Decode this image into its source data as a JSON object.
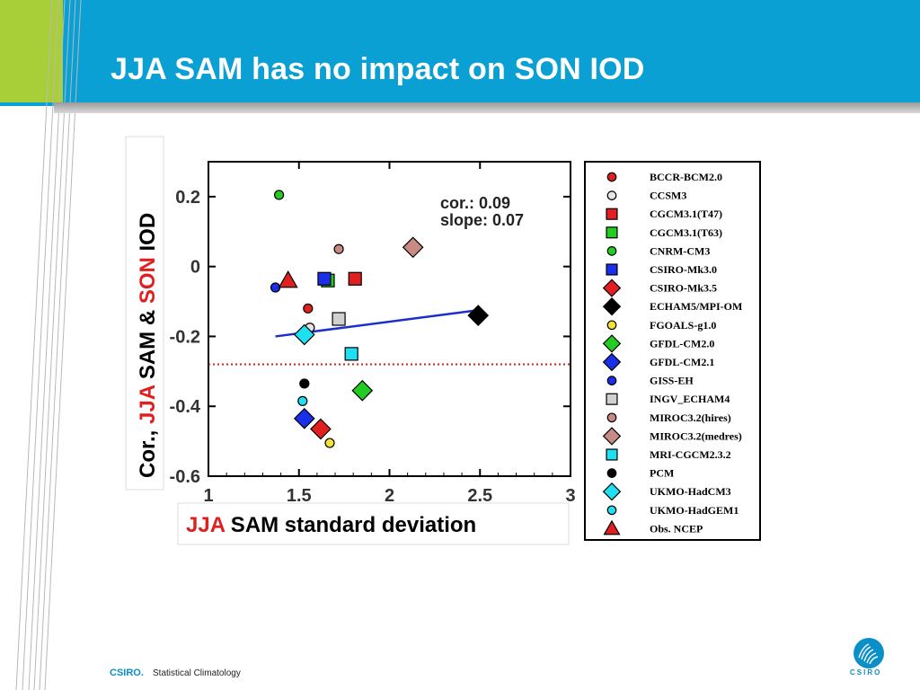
{
  "slide": {
    "title": "JJA SAM has no impact on SON IOD",
    "footer_brand": "CSIRO.",
    "footer_text": "Statistical Climatology",
    "logo_text": "CSIRO",
    "colors": {
      "header": "#0aa0d4",
      "accent_green": "#a9cf38",
      "brand_blue": "#0a8fc8"
    }
  },
  "chart_data": {
    "type": "scatter",
    "title": "",
    "xlabel_parts": [
      "JJA",
      " SAM standard deviation"
    ],
    "ylabel_parts": [
      "Cor., ",
      "JJA",
      " SAM & ",
      "SON",
      " IOD"
    ],
    "xlim": [
      1,
      3
    ],
    "ylim": [
      -0.6,
      0.3
    ],
    "x_ticks": [
      1,
      1.5,
      2,
      2.5,
      3
    ],
    "x_tick_labels": [
      "1",
      "1.5",
      "2",
      "2.5",
      "3"
    ],
    "y_ticks": [
      0.2,
      0,
      -0.2,
      -0.4,
      -0.6
    ],
    "y_tick_labels": [
      "0.2",
      "0",
      "-0.2",
      "-0.4",
      "-0.6"
    ],
    "annotations": {
      "cor": "cor.: 0.09",
      "slope": "slope: 0.07"
    },
    "regression_line": {
      "x": [
        1.37,
        2.49
      ],
      "y": [
        -0.2,
        -0.125
      ],
      "color": "#1a2fcc"
    },
    "reference_line": {
      "y": -0.28,
      "style": "dotted",
      "color": "#cc2222"
    },
    "legend_position": "right",
    "series": [
      {
        "name": "BCCR-BCM2.0",
        "marker": "circle-small",
        "color": "#e02020",
        "x": 1.55,
        "y": -0.12
      },
      {
        "name": "CCSM3",
        "marker": "circle-small",
        "color": "#e6e6e6",
        "x": 1.56,
        "y": -0.175
      },
      {
        "name": "CGCM3.1(T47)",
        "marker": "square",
        "color": "#e02020",
        "x": 1.81,
        "y": -0.035
      },
      {
        "name": "CGCM3.1(T63)",
        "marker": "square",
        "color": "#22cc22",
        "x": 1.66,
        "y": -0.04
      },
      {
        "name": "CNRM-CM3",
        "marker": "circle-small",
        "color": "#22cc22",
        "x": 1.39,
        "y": 0.205
      },
      {
        "name": "CSIRO-Mk3.0",
        "marker": "square",
        "color": "#1a2fe8",
        "x": 1.64,
        "y": -0.035
      },
      {
        "name": "CSIRO-Mk3.5",
        "marker": "diamond",
        "color": "#e02020",
        "x": 1.62,
        "y": -0.465
      },
      {
        "name": "ECHAM5/MPI-OM",
        "marker": "diamond",
        "color": "#000000",
        "x": 2.49,
        "y": -0.14
      },
      {
        "name": "FGOALS-g1.0",
        "marker": "circle-small",
        "color": "#f5e130",
        "x": 1.67,
        "y": -0.505
      },
      {
        "name": "GFDL-CM2.0",
        "marker": "diamond",
        "color": "#22cc22",
        "x": 1.85,
        "y": -0.355
      },
      {
        "name": "GFDL-CM2.1",
        "marker": "diamond",
        "color": "#1a2fe8",
        "x": 1.53,
        "y": -0.435
      },
      {
        "name": "GISS-EH",
        "marker": "circle-small",
        "color": "#1a2fe8",
        "x": 1.37,
        "y": -0.06
      },
      {
        "name": "INGV_ECHAM4",
        "marker": "square",
        "color": "#d0d0d0",
        "x": 1.72,
        "y": -0.15
      },
      {
        "name": "MIROC3.2(hires)",
        "marker": "circle-small",
        "color": "#c88a84",
        "x": 1.72,
        "y": 0.05
      },
      {
        "name": "MIROC3.2(medres)",
        "marker": "diamond",
        "color": "#c88a84",
        "x": 2.13,
        "y": 0.055
      },
      {
        "name": "MRI-CGCM2.3.2",
        "marker": "square",
        "color": "#1ee0f0",
        "x": 1.79,
        "y": -0.25
      },
      {
        "name": "PCM",
        "marker": "circle-small",
        "color": "#000000",
        "x": 1.53,
        "y": -0.335
      },
      {
        "name": "UKMO-HadCM3",
        "marker": "diamond",
        "color": "#1ee0f0",
        "x": 1.53,
        "y": -0.195
      },
      {
        "name": "UKMO-HadGEM1",
        "marker": "circle-small",
        "color": "#1ee0f0",
        "x": 1.52,
        "y": -0.385
      },
      {
        "name": "Obs. NCEP",
        "marker": "triangle",
        "color": "#e02020",
        "x": 1.44,
        "y": -0.04
      }
    ]
  }
}
